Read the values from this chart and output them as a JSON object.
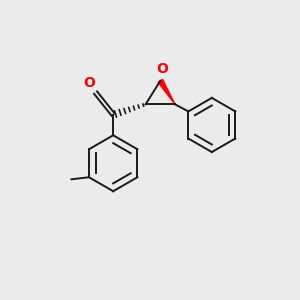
{
  "bg_color": "#ebebeb",
  "bond_color": "#1a1a1a",
  "oxygen_color": "#ff0000",
  "lw": 1.4,
  "figsize": [
    3.0,
    3.0
  ],
  "dpi": 100,
  "xlim": [
    0,
    10
  ],
  "ylim": [
    0,
    10
  ]
}
